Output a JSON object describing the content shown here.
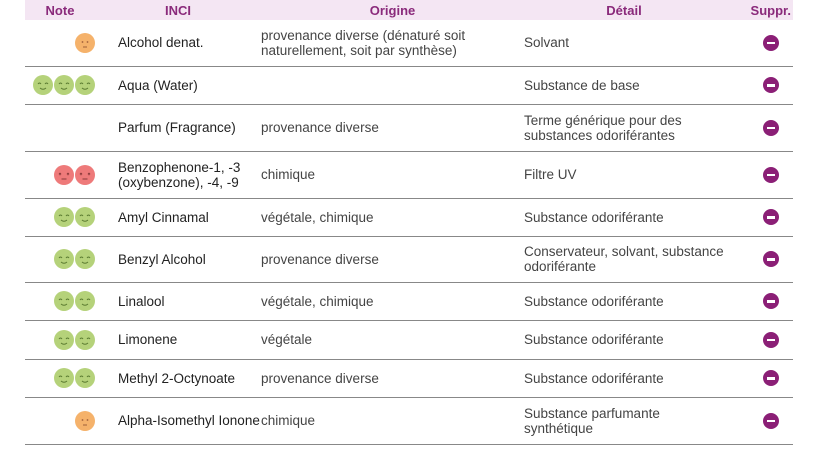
{
  "headers": {
    "note": "Note",
    "inci": "INCI",
    "origine": "Origine",
    "detail": "Détail",
    "suppr": "Suppr."
  },
  "colors": {
    "good": "#b5d27a",
    "medium": "#f5b26b",
    "bad": "#ee7a7a",
    "accent": "#8b1f76"
  },
  "rows": [
    {
      "rating": "medium",
      "count": 1,
      "inci": "Alcohol denat.",
      "origine": "provenance diverse (dénaturé soit naturellement, soit par synthèse)",
      "detail": "Solvant",
      "h": 46
    },
    {
      "rating": "good",
      "count": 3,
      "inci": "Aqua (Water)",
      "origine": "",
      "detail": "Substance de base",
      "h": 38
    },
    {
      "rating": "none",
      "count": 0,
      "inci": "Parfum (Fragrance)",
      "origine": "provenance diverse",
      "detail": "Terme générique pour des substances odoriférantes",
      "h": 47
    },
    {
      "rating": "bad",
      "count": 2,
      "inci": "Benzophenone-1, -3 (oxybenzone), -4, -9",
      "origine": "chimique",
      "detail": "Filtre UV",
      "h": 47
    },
    {
      "rating": "good",
      "count": 2,
      "inci": "Amyl Cinnamal",
      "origine": "végétale, chimique",
      "detail": "Substance odoriférante",
      "h": 38
    },
    {
      "rating": "good",
      "count": 2,
      "inci": "Benzyl Alcohol",
      "origine": "provenance diverse",
      "detail": "Conservateur, solvant, substance odoriférante",
      "h": 46
    },
    {
      "rating": "good",
      "count": 2,
      "inci": "Linalool",
      "origine": "végétale, chimique",
      "detail": "Substance odoriférante",
      "h": 38
    },
    {
      "rating": "good",
      "count": 2,
      "inci": "Limonene",
      "origine": "végétale",
      "detail": "Substance odoriférante",
      "h": 39
    },
    {
      "rating": "good",
      "count": 2,
      "inci": "Methyl 2-Octynoate",
      "origine": "provenance diverse",
      "detail": "Substance odoriférante",
      "h": 38
    },
    {
      "rating": "medium",
      "count": 1,
      "inci": "Alpha-Isomethyl Ionone",
      "origine": "chimique",
      "detail": "Substance parfumante synthétique",
      "h": 47
    }
  ]
}
